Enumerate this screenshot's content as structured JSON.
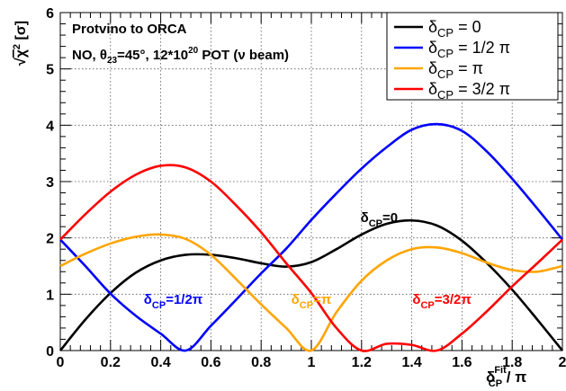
{
  "chart_data": {
    "type": "line",
    "title_lines": [
      "Protvino to ORCA",
      "NO, θ23=45°, 12*10^20 POT (ν beam)"
    ],
    "title": {
      "line1": "Protvino to ORCA",
      "line2_prefix": "NO, θ",
      "line2_sub": "23",
      "line2_mid": "=45°, 12*10",
      "line2_sup": "20",
      "line2_suffix": " POT (ν beam)"
    },
    "ylabel": {
      "sqrt": "√",
      "chi": "χ",
      "sup": "2",
      "unit": " [σ]"
    },
    "xlabel": {
      "delta": "δ",
      "sup": "Fit",
      "sub": "CP",
      "suffix": " / π"
    },
    "xlim": [
      0,
      2
    ],
    "ylim": [
      0,
      6
    ],
    "xticks": [
      "0",
      "0.2",
      "0.4",
      "0.6",
      "0.8",
      "1",
      "1.2",
      "1.4",
      "1.6",
      "1.8",
      "2"
    ],
    "yticks": [
      "0",
      "1",
      "2",
      "3",
      "4",
      "5",
      "6"
    ],
    "grid": true,
    "legend_position": "top-right",
    "x": [
      0,
      0.1,
      0.2,
      0.3,
      0.4,
      0.5,
      0.6,
      0.7,
      0.8,
      0.9,
      1.0,
      1.1,
      1.2,
      1.3,
      1.4,
      1.5,
      1.6,
      1.7,
      1.8,
      1.9,
      2.0
    ],
    "series": [
      {
        "name": "δCP = 0",
        "legend_prefix": "δ",
        "legend_sub": "CP",
        "legend_suffix": " = 0",
        "color": "#000000",
        "values": [
          0.0,
          0.55,
          1.02,
          1.38,
          1.6,
          1.7,
          1.7,
          1.64,
          1.55,
          1.49,
          1.57,
          1.8,
          2.06,
          2.25,
          2.31,
          2.22,
          1.95,
          1.55,
          1.08,
          0.55,
          0.0
        ]
      },
      {
        "name": "δCP = 1/2 π",
        "legend_prefix": "δ",
        "legend_sub": "CP",
        "legend_suffix": " = 1/2 π",
        "color": "#0000ff",
        "values": [
          1.97,
          1.5,
          1.01,
          0.62,
          0.3,
          0.0,
          0.44,
          0.9,
          1.37,
          1.81,
          2.32,
          2.79,
          3.23,
          3.61,
          3.92,
          4.02,
          3.9,
          3.53,
          3.05,
          2.52,
          1.97
        ]
      },
      {
        "name": "δCP = π",
        "legend_prefix": "δ",
        "legend_sub": "CP",
        "legend_suffix": " = π",
        "color": "#ffa500",
        "values": [
          1.5,
          1.72,
          1.9,
          2.02,
          2.06,
          1.98,
          1.7,
          1.27,
          0.82,
          0.4,
          0.0,
          0.68,
          1.24,
          1.6,
          1.8,
          1.83,
          1.73,
          1.56,
          1.43,
          1.4,
          1.5
        ]
      },
      {
        "name": "δCP = 3/2 π",
        "legend_prefix": "δ",
        "legend_sub": "CP",
        "legend_suffix": " = 3/2 π",
        "color": "#ff0000",
        "values": [
          1.97,
          2.42,
          2.82,
          3.12,
          3.28,
          3.25,
          3.0,
          2.58,
          2.1,
          1.55,
          1.02,
          0.4,
          0.0,
          0.12,
          0.1,
          0.0,
          0.3,
          0.7,
          1.14,
          1.55,
          1.97
        ]
      }
    ],
    "annotations": [
      {
        "prefix": "δ",
        "sub": "CP",
        "suffix": "=0",
        "color": "#000000",
        "x": 1.27,
        "y": 2.28
      },
      {
        "prefix": "δ",
        "sub": "CP",
        "suffix": "=1/2π",
        "color": "#0000ff",
        "x": 0.45,
        "y": 0.83
      },
      {
        "prefix": "δ",
        "sub": "CP",
        "suffix": "=π",
        "color": "#ffa500",
        "x": 1.0,
        "y": 0.83
      },
      {
        "prefix": "δ",
        "sub": "CP",
        "suffix": "=3/2π",
        "color": "#ff0000",
        "x": 1.52,
        "y": 0.83
      }
    ]
  }
}
